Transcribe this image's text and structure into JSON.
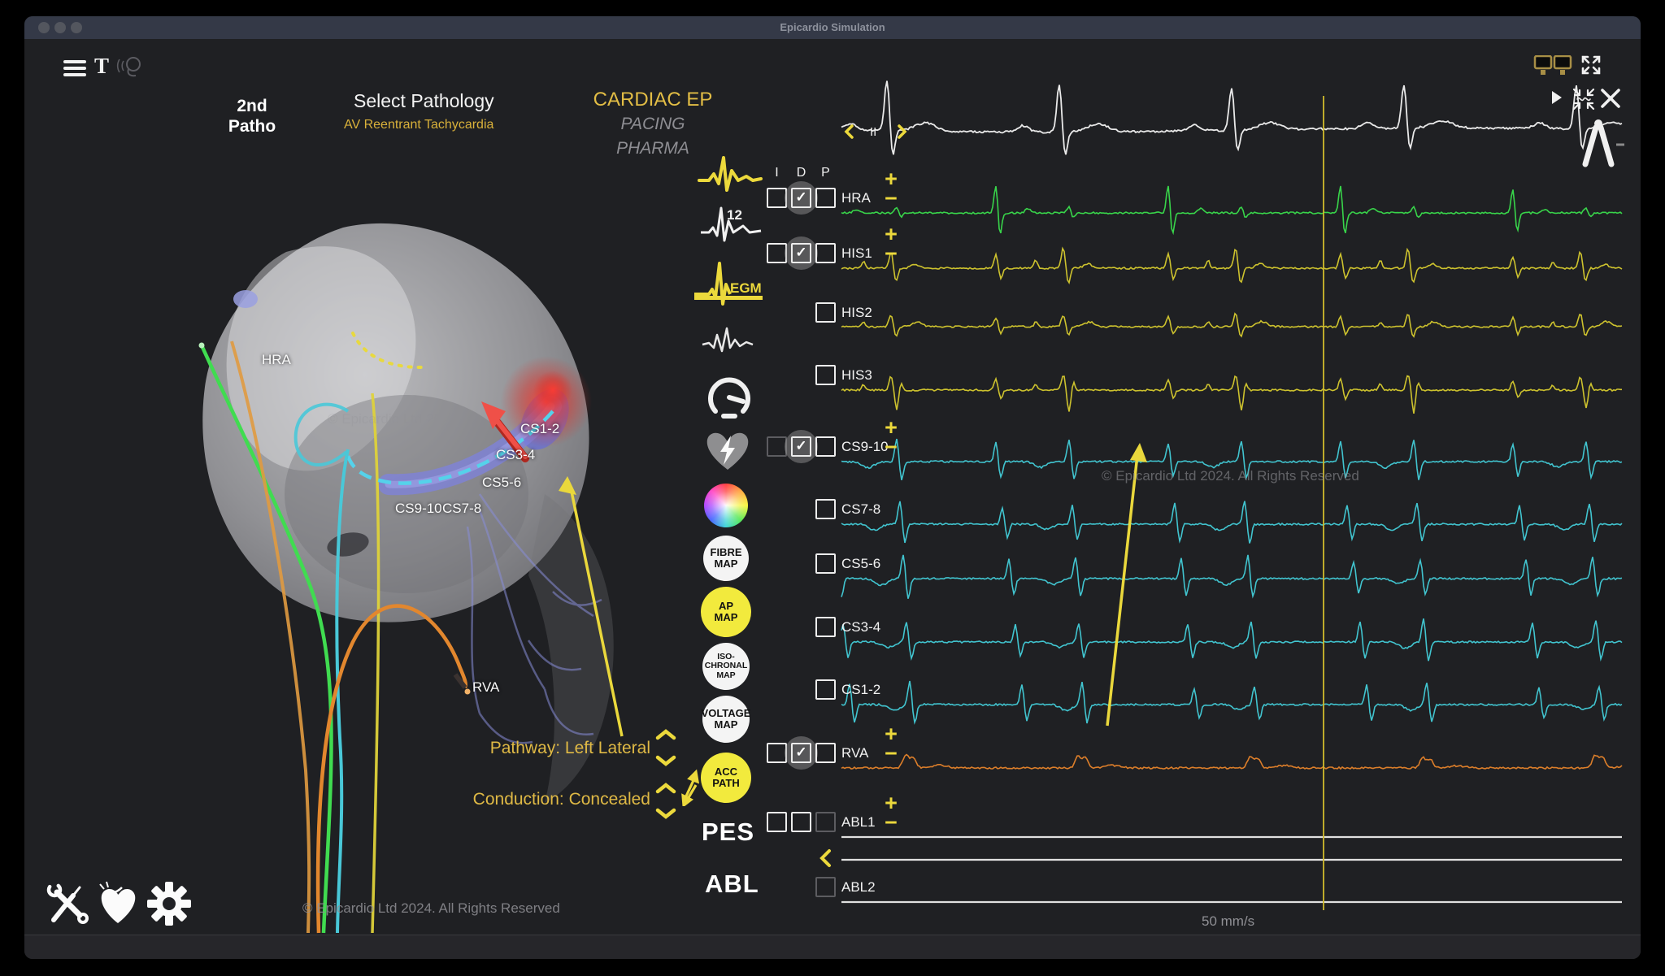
{
  "window": {
    "title": "Epicardio Simulation"
  },
  "toolbar": {
    "text_tool": "T"
  },
  "pathology": {
    "slot_line1": "2nd",
    "slot_line2": "Patho",
    "select_title": "Select Pathology",
    "selected": "AV Reentrant Tachycardia"
  },
  "menu": {
    "items": [
      {
        "label": "CARDIAC EP",
        "active": true
      },
      {
        "label": "PACING",
        "active": false
      },
      {
        "label": "PHARMA",
        "active": false
      }
    ]
  },
  "icon_column": {
    "twelve_label": "12",
    "egm_label": "EGM"
  },
  "map_buttons": [
    {
      "id": "fibre-map",
      "lines": [
        "FIBRE",
        "MAP"
      ],
      "active": false
    },
    {
      "id": "ap-map",
      "lines": [
        "AP",
        "MAP"
      ],
      "active": true
    },
    {
      "id": "isochronal-map",
      "lines": [
        "ISO-",
        "CHRONAL",
        "MAP"
      ],
      "active": false
    },
    {
      "id": "voltage-map",
      "lines": [
        "VOLTAGE",
        "MAP"
      ],
      "active": false
    },
    {
      "id": "acc-path",
      "lines": [
        "ACC",
        "PATH"
      ],
      "active": true
    }
  ],
  "stim": {
    "pes": "PES",
    "abl": "ABL"
  },
  "annotations": {
    "pathway": "Pathway: Left Lateral",
    "conduction": "Conduction: Concealed"
  },
  "heart": {
    "labels": [
      "HRA",
      "CS1-2",
      "CS3-4",
      "CS5-6",
      "CS9-10",
      "CS7-8",
      "RVA"
    ],
    "watermark": "© Epicardio Ltd 2024."
  },
  "traces": {
    "lead": "II",
    "header": [
      "I",
      "D",
      "P"
    ],
    "gain_plus": "+",
    "gain_minus": "−",
    "check_glyph": "✓",
    "rows": [
      {
        "label": "HRA",
        "color": "green",
        "kind": "hra",
        "boxes": [
          "empty",
          "checked",
          "empty"
        ],
        "gain": true
      },
      {
        "label": "HIS1",
        "color": "yellow",
        "kind": "his1",
        "boxes": [
          "empty",
          "checked",
          "empty"
        ],
        "gain": true
      },
      {
        "label": "HIS2",
        "color": "yellow",
        "kind": "his2",
        "boxes": [
          null,
          null,
          "empty"
        ],
        "gain": false
      },
      {
        "label": "HIS3",
        "color": "yellow",
        "kind": "his3",
        "boxes": [
          null,
          null,
          "empty"
        ],
        "gain": false
      },
      {
        "label": "CS9-10",
        "color": "cyan",
        "kind": "cs0",
        "boxes": [
          "dim",
          "checked",
          "empty"
        ],
        "gain": true
      },
      {
        "label": "CS7-8",
        "color": "cyan",
        "kind": "cs1",
        "boxes": [
          null,
          null,
          "empty"
        ],
        "gain": false
      },
      {
        "label": "CS5-6",
        "color": "cyan",
        "kind": "cs2",
        "boxes": [
          null,
          null,
          "empty"
        ],
        "gain": false
      },
      {
        "label": "CS3-4",
        "color": "cyan",
        "kind": "cs3",
        "boxes": [
          null,
          null,
          "empty"
        ],
        "gain": false
      },
      {
        "label": "CS1-2",
        "color": "cyan",
        "kind": "cs4",
        "boxes": [
          null,
          null,
          "empty"
        ],
        "gain": false
      },
      {
        "label": "RVA",
        "color": "orange",
        "kind": "rva",
        "boxes": [
          "empty",
          "checked",
          "empty"
        ],
        "gain": true
      },
      {
        "label": "ABL1",
        "color": "white",
        "kind": "flat",
        "boxes": [
          "empty",
          "empty",
          "dim"
        ],
        "gain": true
      },
      {
        "label": "ABL2",
        "color": "white",
        "kind": "flat",
        "boxes": [
          null,
          null,
          "dim"
        ],
        "gain": false
      }
    ],
    "watermark": "© Epicardio Ltd 2024. All Rights Reserved",
    "speed": "50 mm/s"
  },
  "footer": {
    "copyright": "© Epicardio Ltd 2024. All Rights Reserved"
  },
  "colors": {
    "accent": "#ECD93C",
    "gold": "#DFB945",
    "green": "#38D44A",
    "yellow_trace": "#CDC22E",
    "cyan": "#41C4CF",
    "orange": "#DC7E2A",
    "white_trace": "#E0E0E0"
  }
}
